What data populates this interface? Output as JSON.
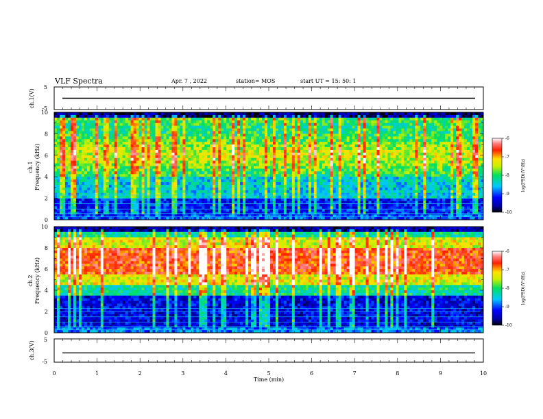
{
  "header": {
    "title": "VLF Spectra",
    "date": "Apr. 7 , 2022",
    "station": "station= MOS",
    "start": "start UT =  15: 50: 1"
  },
  "chart_data": [
    {
      "type": "line",
      "id": "ch1-voltage",
      "ylabel": "ch.1(V)",
      "ylim": [
        -5,
        5
      ],
      "y_ticks": [
        "5",
        "-5"
      ],
      "xlim": [
        0,
        10
      ],
      "series": [
        {
          "x": [
            0,
            10
          ],
          "values": [
            0,
            0
          ]
        }
      ]
    },
    {
      "type": "heatmap",
      "id": "ch1-spectrogram",
      "ylabel": "ch.1",
      "ylabel2": "Frequency (kHz)",
      "ylim": [
        0,
        10
      ],
      "y_ticks": [
        "0",
        "2",
        "4",
        "6",
        "8",
        "10"
      ],
      "xlim": [
        0,
        10
      ],
      "colorbar": {
        "label": "log(PSD)(V²/Hz)",
        "range": [
          -10,
          -6
        ],
        "ticks": [
          "-6",
          "-7",
          "-8",
          "-9",
          "-10"
        ]
      }
    },
    {
      "type": "heatmap",
      "id": "ch2-spectrogram",
      "ylabel": "ch.2",
      "ylabel2": "Frequency (kHz)",
      "ylim": [
        0,
        10
      ],
      "y_ticks": [
        "0",
        "2",
        "4",
        "6",
        "8",
        "10"
      ],
      "xlim": [
        0,
        10
      ],
      "colorbar": {
        "label": "log(PSD)(V²/Hz)",
        "range": [
          -10,
          -6
        ],
        "ticks": [
          "-6",
          "-7",
          "-8",
          "-9",
          "-10"
        ]
      }
    },
    {
      "type": "line",
      "id": "ch3-voltage",
      "ylabel": "ch.3(V)",
      "ylim": [
        -5,
        5
      ],
      "y_ticks": [
        "5",
        "-5"
      ],
      "xlim": [
        0,
        10
      ],
      "x_ticks": [
        "0",
        "1",
        "2",
        "3",
        "4",
        "5",
        "6",
        "7",
        "8",
        "9",
        "10"
      ],
      "xlabel": "Time  (min)",
      "series": [
        {
          "x": [
            0,
            10
          ],
          "values": [
            -1,
            -1
          ]
        }
      ]
    }
  ]
}
